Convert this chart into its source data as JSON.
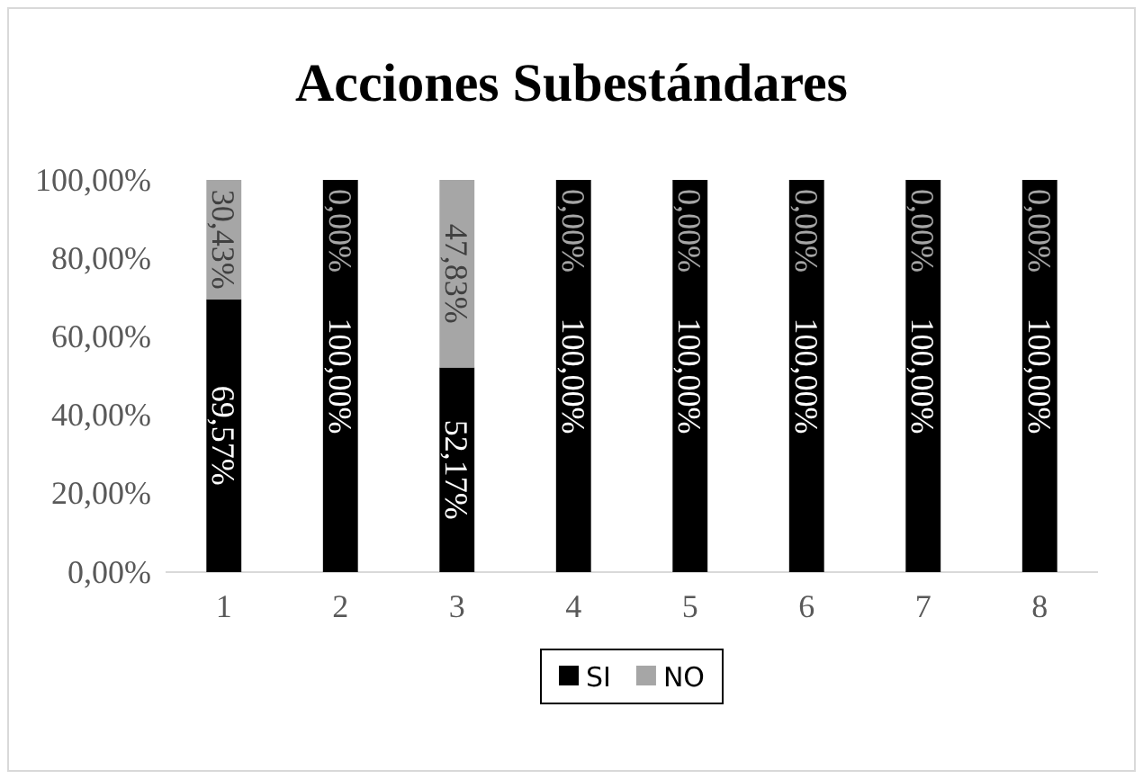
{
  "chart_data": {
    "type": "bar",
    "title": "Acciones Subestándares",
    "stacked": true,
    "categories": [
      "1",
      "2",
      "3",
      "4",
      "5",
      "6",
      "7",
      "8"
    ],
    "series": [
      {
        "name": "SI",
        "color": "#000000",
        "values": [
          69.57,
          100,
          52.17,
          100,
          100,
          100,
          100,
          100
        ],
        "value_labels": [
          "69,57%",
          "100,00%",
          "52,17%",
          "100,00%",
          "100,00%",
          "100,00%",
          "100,00%",
          "100,00%"
        ]
      },
      {
        "name": "NO",
        "color": "#a6a6a6",
        "values": [
          30.43,
          0,
          47.83,
          0,
          0,
          0,
          0,
          0
        ],
        "value_labels": [
          "30,43%",
          "0,00%",
          "47,83%",
          "0,00%",
          "0,00%",
          "0,00%",
          "0,00%",
          "0,00%"
        ]
      }
    ],
    "ylim": [
      0,
      100
    ],
    "yticks": [
      {
        "value": 0,
        "label": "0,00%"
      },
      {
        "value": 20,
        "label": "20,00%"
      },
      {
        "value": 40,
        "label": "40,00%"
      },
      {
        "value": 60,
        "label": "60,00%"
      },
      {
        "value": 80,
        "label": "80,00%"
      },
      {
        "value": 100,
        "label": "100,00%"
      }
    ],
    "grid": false,
    "legend": "bottom"
  }
}
